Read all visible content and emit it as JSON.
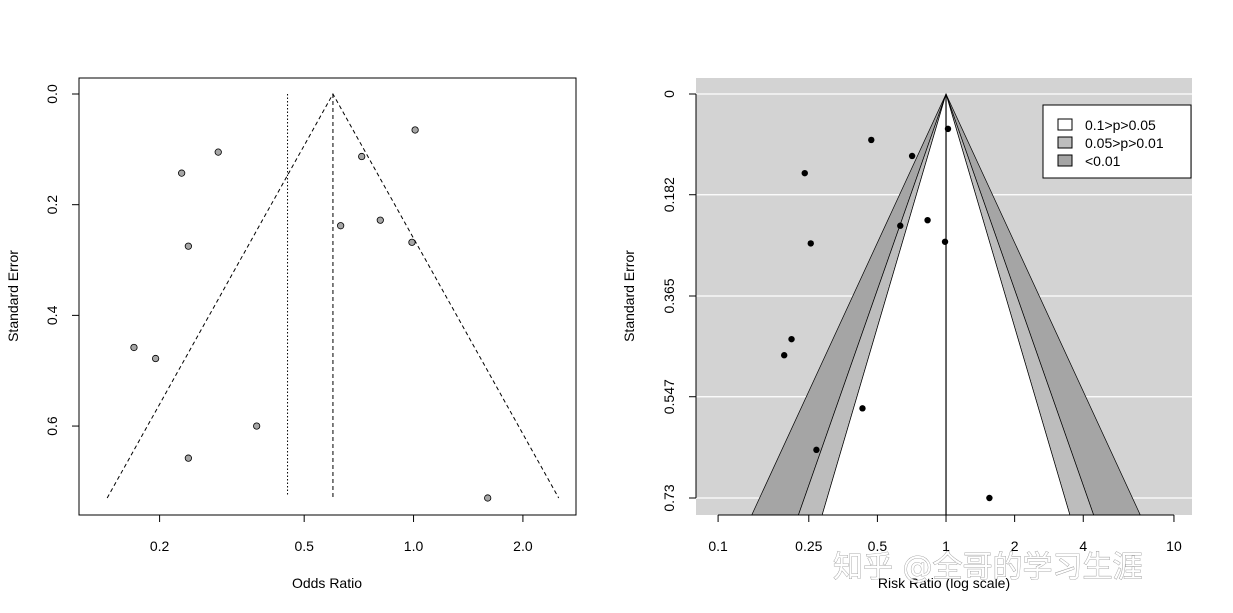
{
  "chart_data": [
    {
      "type": "scatter",
      "subtype": "funnel",
      "xlabel": "Odds Ratio",
      "ylabel": "Standard Error",
      "x_scale": "log",
      "xlim": [
        0.12,
        2.8
      ],
      "ylim": [
        0.0,
        0.75
      ],
      "y_reversed": true,
      "x_ticks": [
        "0.2",
        "0.5",
        "1.0",
        "2.0"
      ],
      "y_ticks": [
        "0.0",
        "0.2",
        "0.4",
        "0.6"
      ],
      "pooled_estimate": 0.6,
      "reference_line": 0.45,
      "funnel_max_se": 0.73,
      "point_color": "#a6a6a6",
      "points": [
        {
          "x": 1.01,
          "y": 0.065
        },
        {
          "x": 0.29,
          "y": 0.105
        },
        {
          "x": 0.72,
          "y": 0.113
        },
        {
          "x": 0.23,
          "y": 0.143
        },
        {
          "x": 0.81,
          "y": 0.228
        },
        {
          "x": 0.63,
          "y": 0.238
        },
        {
          "x": 0.24,
          "y": 0.275
        },
        {
          "x": 0.99,
          "y": 0.268
        },
        {
          "x": 0.17,
          "y": 0.458
        },
        {
          "x": 0.195,
          "y": 0.478
        },
        {
          "x": 0.37,
          "y": 0.6
        },
        {
          "x": 0.24,
          "y": 0.658
        },
        {
          "x": 1.6,
          "y": 0.73
        }
      ]
    },
    {
      "type": "scatter",
      "subtype": "contour-enhanced funnel",
      "xlabel": "Risk Ratio (log scale)",
      "ylabel": "Standard Error",
      "x_scale": "log",
      "xlim": [
        0.08,
        12.0
      ],
      "ylim": [
        0.0,
        0.75
      ],
      "y_reversed": true,
      "x_ticks": [
        "0.1",
        "0.25",
        "0.5",
        "1",
        "2",
        "4",
        "10"
      ],
      "y_ticks": [
        "0",
        "0.182",
        "0.365",
        "0.547",
        "0.73"
      ],
      "grid": true,
      "background_color": "#d3d3d3",
      "contour_colors": [
        "#ffffff",
        "#bdbdbd",
        "#a5a5a5"
      ],
      "legend": {
        "placement": "top-right",
        "entries": [
          {
            "label": "0.1>p>0.05",
            "color": "#ffffff"
          },
          {
            "label": "0.05>p>0.01",
            "color": "#bdbdbd"
          },
          {
            "label": "<0.01",
            "color": "#a5a5a5"
          }
        ]
      },
      "point_color": "#000000",
      "points": [
        {
          "x": 1.02,
          "y": 0.063
        },
        {
          "x": 0.47,
          "y": 0.083
        },
        {
          "x": 0.71,
          "y": 0.112
        },
        {
          "x": 0.24,
          "y": 0.143
        },
        {
          "x": 0.83,
          "y": 0.228
        },
        {
          "x": 0.63,
          "y": 0.238
        },
        {
          "x": 0.255,
          "y": 0.27
        },
        {
          "x": 0.99,
          "y": 0.267
        },
        {
          "x": 0.21,
          "y": 0.443
        },
        {
          "x": 0.195,
          "y": 0.472
        },
        {
          "x": 0.43,
          "y": 0.568
        },
        {
          "x": 0.27,
          "y": 0.643
        },
        {
          "x": 1.55,
          "y": 0.73
        }
      ]
    }
  ],
  "watermark": "知乎 @全哥的学习生涯"
}
